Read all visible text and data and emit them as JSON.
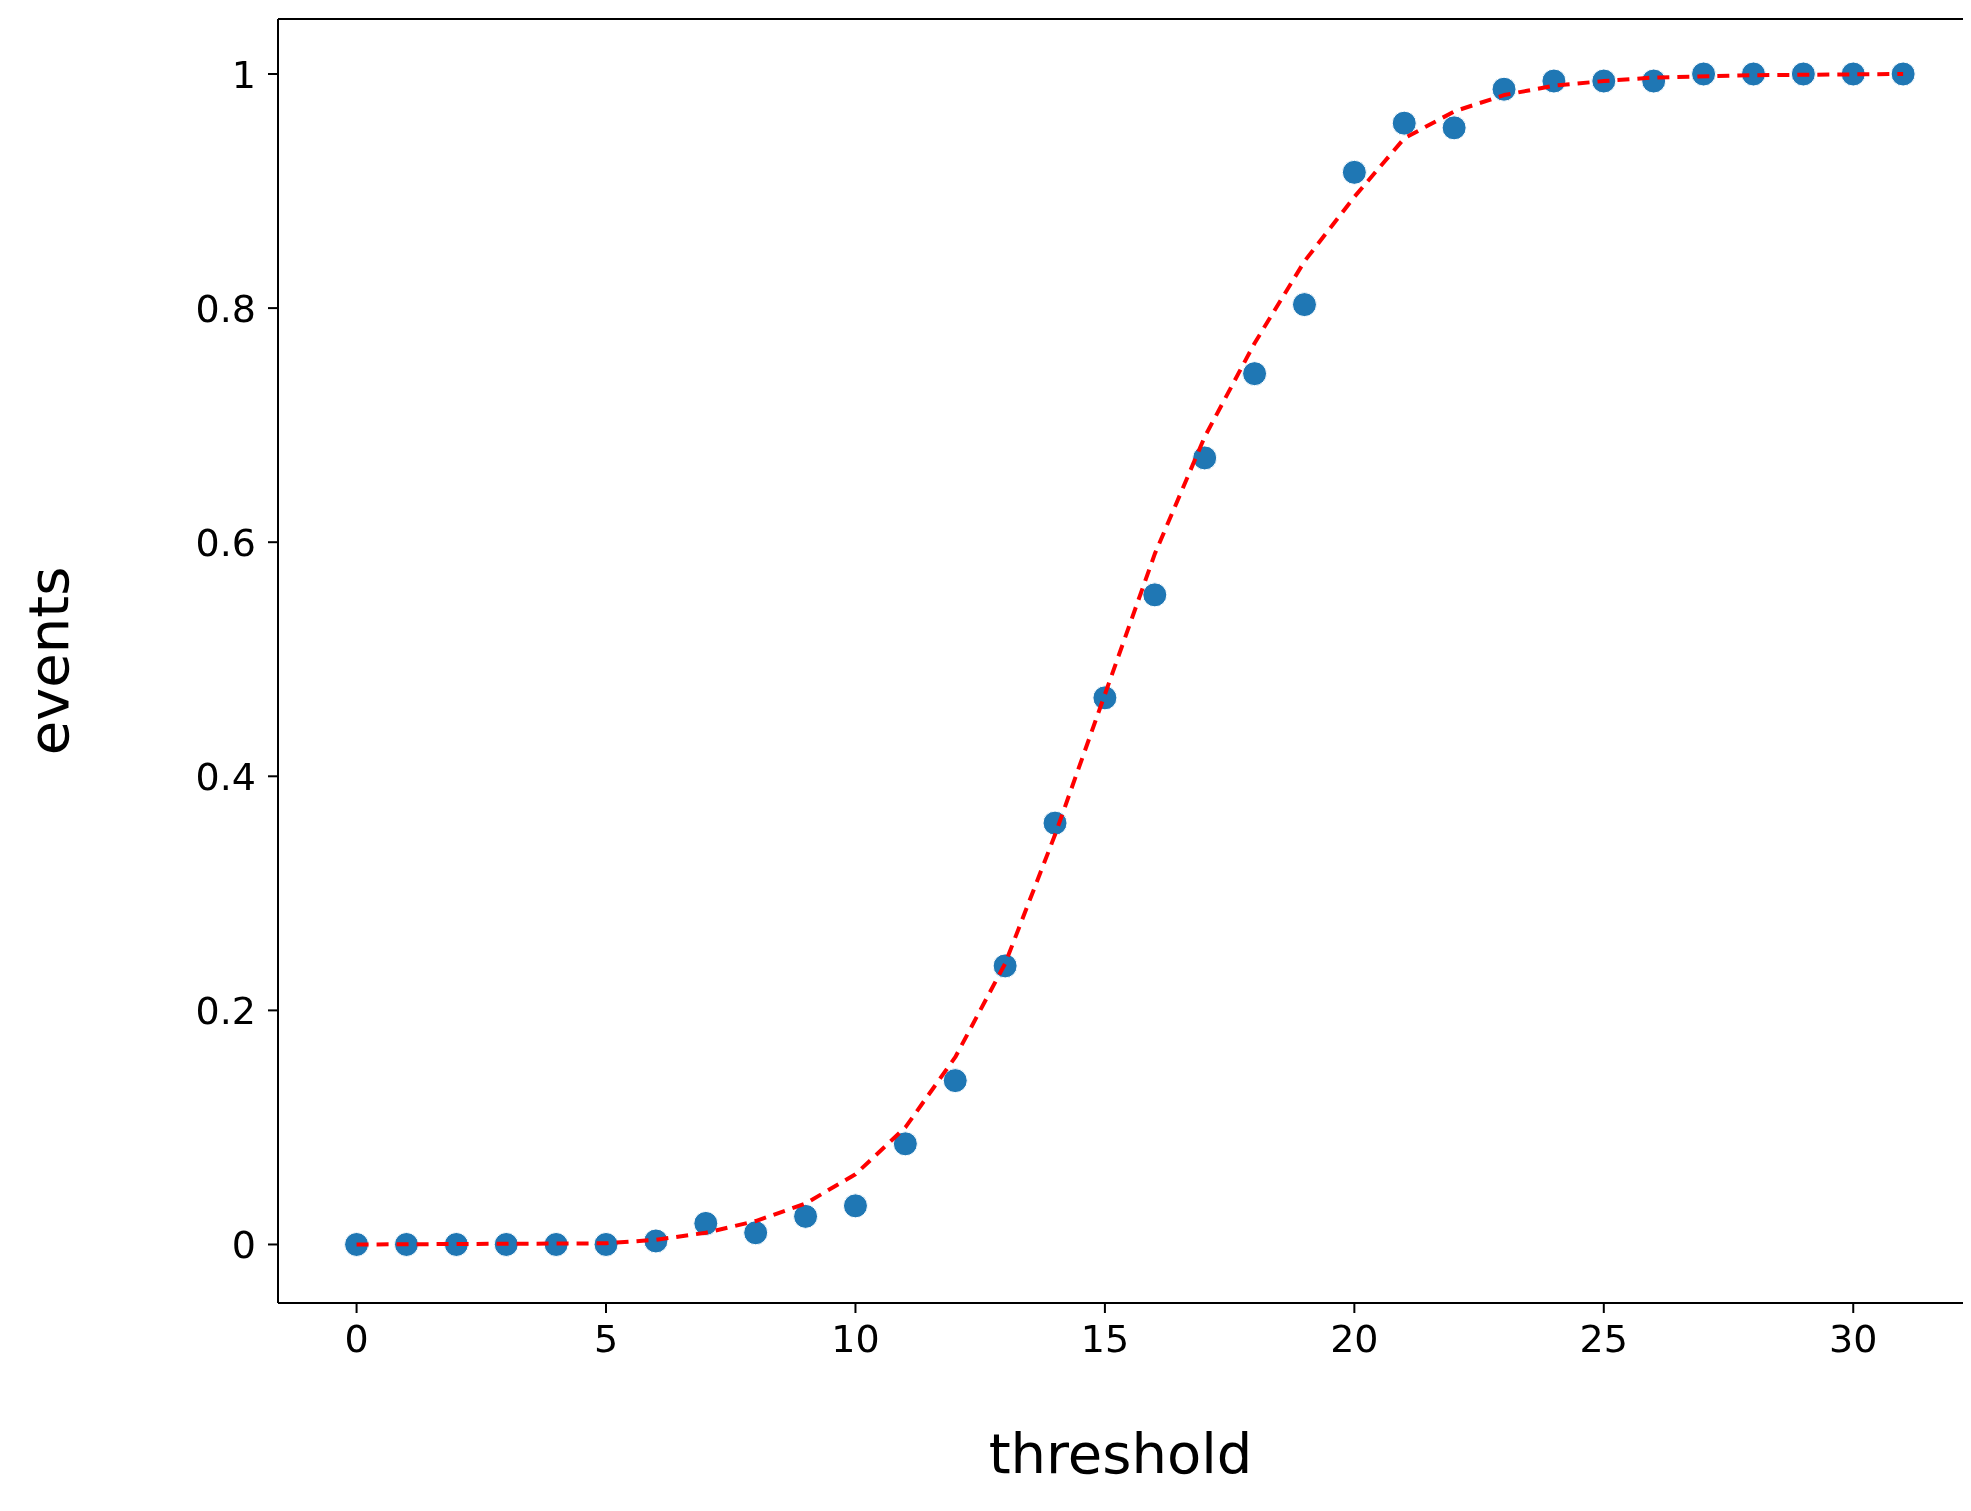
{
  "chart_data": {
    "type": "scatter",
    "xlabel": "threshold",
    "ylabel": "events",
    "xlim": [
      -1.575,
      32.2
    ],
    "ylim": [
      -0.05,
      1.047
    ],
    "xticks": [
      0,
      5,
      10,
      15,
      20,
      25,
      30
    ],
    "yticks": [
      0,
      0.2,
      0.4,
      0.6,
      0.8,
      1
    ],
    "grid": false,
    "legend": false,
    "series": [
      {
        "marker": "circle",
        "color": "#1f77b4",
        "x": [
          0,
          1,
          2,
          3,
          4,
          5,
          6,
          7,
          8,
          9,
          10,
          11,
          12,
          13,
          14,
          15,
          16,
          17,
          18,
          19,
          20,
          21,
          22,
          23,
          24,
          25,
          26,
          27,
          28,
          29,
          30,
          31
        ],
        "values": [
          0,
          0,
          0,
          0,
          0,
          0,
          0.003,
          0.018,
          0.01,
          0.024,
          0.033,
          0.086,
          0.14,
          0.238,
          0.36,
          0.467,
          0.555,
          0.672,
          0.744,
          0.803,
          0.916,
          0.958,
          0.954,
          0.987,
          0.994,
          0.994,
          0.994,
          1,
          1,
          1,
          1,
          1
        ]
      },
      {
        "type": "line",
        "line_style": "dashed",
        "color": "#ff0000",
        "x": [
          0,
          5,
          6,
          7,
          8,
          9,
          10,
          11,
          12,
          13,
          14,
          15,
          16,
          17,
          18,
          19,
          20,
          21,
          22,
          23,
          24,
          25,
          26,
          28,
          31
        ],
        "values": [
          0,
          0.001,
          0.004,
          0.01,
          0.02,
          0.035,
          0.06,
          0.1,
          0.16,
          0.24,
          0.35,
          0.47,
          0.59,
          0.69,
          0.77,
          0.84,
          0.895,
          0.945,
          0.968,
          0.982,
          0.99,
          0.994,
          0.997,
          0.999,
          1
        ]
      }
    ]
  }
}
